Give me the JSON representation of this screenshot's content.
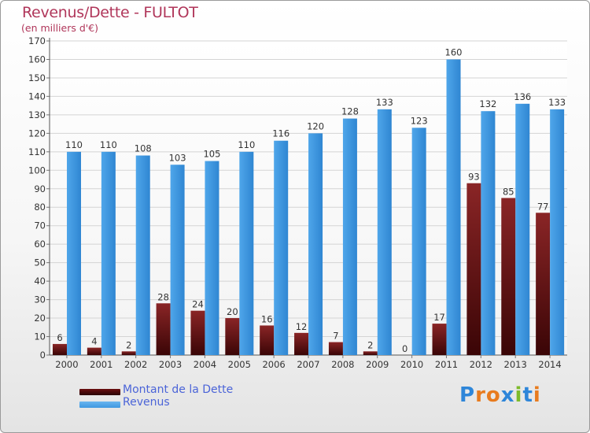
{
  "title": "Revenus/Dette - FULTOT",
  "subtitle": "(en milliers d'€)",
  "chart_data": {
    "type": "bar",
    "title": "Revenus/Dette - FULTOT",
    "subtitle": "(en milliers d'€)",
    "categories": [
      "2000",
      "2001",
      "2002",
      "2003",
      "2004",
      "2005",
      "2006",
      "2007",
      "2008",
      "2009",
      "2010",
      "2011",
      "2012",
      "2013",
      "2014"
    ],
    "series": [
      {
        "name": "Montant de la Dette",
        "color": "#6b0f10",
        "values": [
          6,
          4,
          2,
          28,
          24,
          20,
          16,
          12,
          7,
          2,
          0,
          17,
          93,
          85,
          77
        ]
      },
      {
        "name": "Revenus",
        "color": "#3f97e0",
        "values": [
          110,
          110,
          108,
          103,
          105,
          110,
          116,
          120,
          128,
          133,
          123,
          160,
          132,
          136,
          133
        ]
      }
    ],
    "ylim": [
      0,
      170
    ],
    "yticks": [
      0,
      10,
      20,
      30,
      40,
      50,
      60,
      70,
      80,
      90,
      100,
      110,
      120,
      130,
      140,
      150,
      160,
      170
    ],
    "grid": true,
    "legend_position": "bottom-left"
  },
  "legend": [
    {
      "label": "Montant de la Dette",
      "color": "#6b0f10"
    },
    {
      "label": "Revenus",
      "color": "#3f97e0"
    }
  ],
  "logo": {
    "letters": [
      "P",
      "r",
      "o",
      "x",
      "i",
      "t",
      "i"
    ],
    "colors": [
      "#2e86d9",
      "#e87b1e",
      "#e87b1e",
      "#2e86d9",
      "#7dbb2b",
      "#2e86d9",
      "#e87b1e"
    ]
  }
}
